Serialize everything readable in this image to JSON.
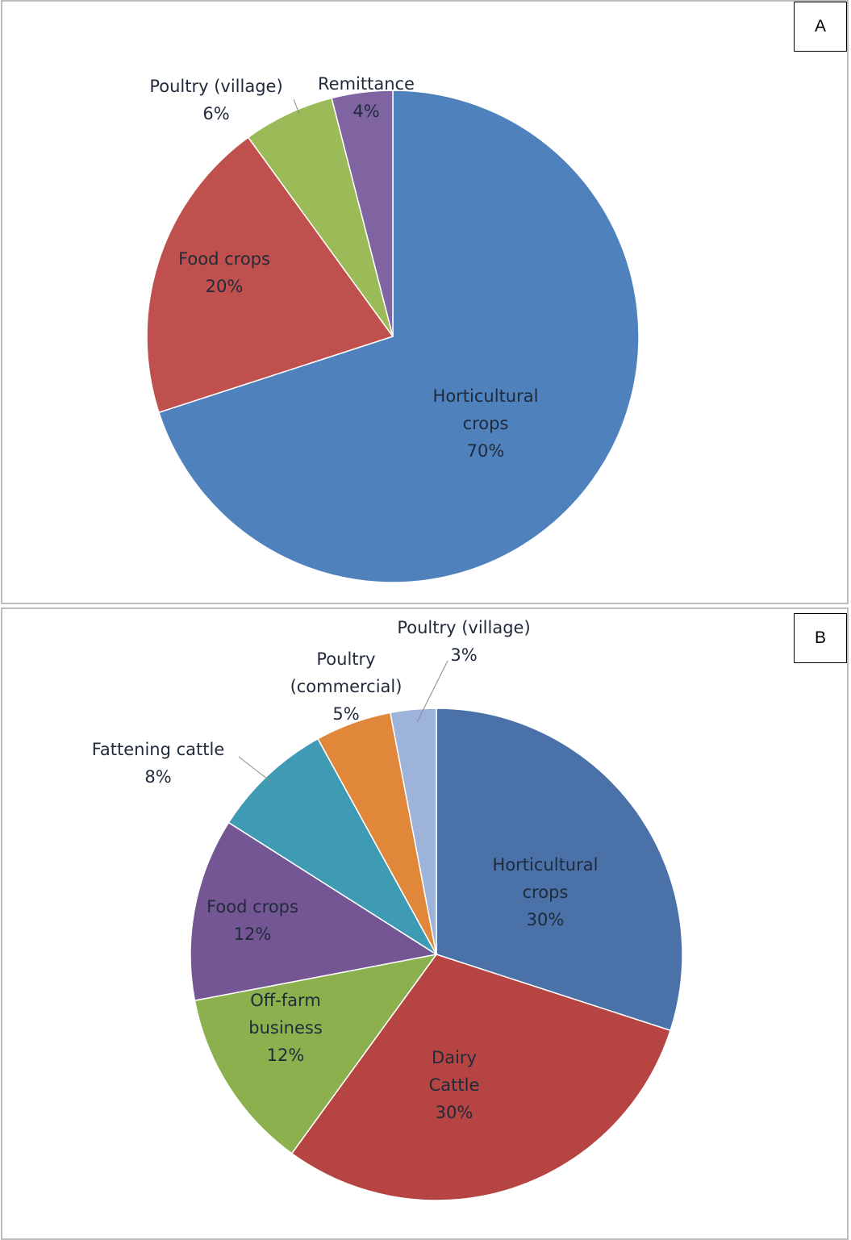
{
  "chart_data": [
    {
      "type": "pie",
      "panel_label": "A",
      "slices": [
        {
          "label": [
            "Horticultural",
            "crops"
          ],
          "value": 70,
          "display": "70%",
          "color": "#4f81bd"
        },
        {
          "label": [
            "Food crops"
          ],
          "value": 20,
          "display": "20%",
          "color": "#c0504d"
        },
        {
          "label": [
            "Poultry (village)"
          ],
          "value": 6,
          "display": "6%",
          "color": "#9bbb59"
        },
        {
          "label": [
            "Remittance"
          ],
          "value": 4,
          "display": "4%",
          "color": "#8064a2"
        }
      ]
    },
    {
      "type": "pie",
      "panel_label": "B",
      "slices": [
        {
          "label": [
            "Horticultural",
            "crops"
          ],
          "value": 30,
          "display": "30%",
          "color": "#4a72a8"
        },
        {
          "label": [
            "Dairy",
            "Cattle"
          ],
          "value": 30,
          "display": "30%",
          "color": "#b64442"
        },
        {
          "label": [
            "Off-farm",
            "business"
          ],
          "value": 12,
          "display": "12%",
          "color": "#8db04f"
        },
        {
          "label": [
            "Food crops"
          ],
          "value": 12,
          "display": "12%",
          "color": "#735693"
        },
        {
          "label": [
            "Fattening cattle"
          ],
          "value": 8,
          "display": "8%",
          "color": "#3f9bb3"
        },
        {
          "label": [
            "Poultry",
            "(commercial)"
          ],
          "value": 5,
          "display": "5%",
          "color": "#e0873a"
        },
        {
          "label": [
            "Poultry  (village)"
          ],
          "value": 3,
          "display": "3%",
          "color": "#9db3da"
        }
      ]
    }
  ]
}
